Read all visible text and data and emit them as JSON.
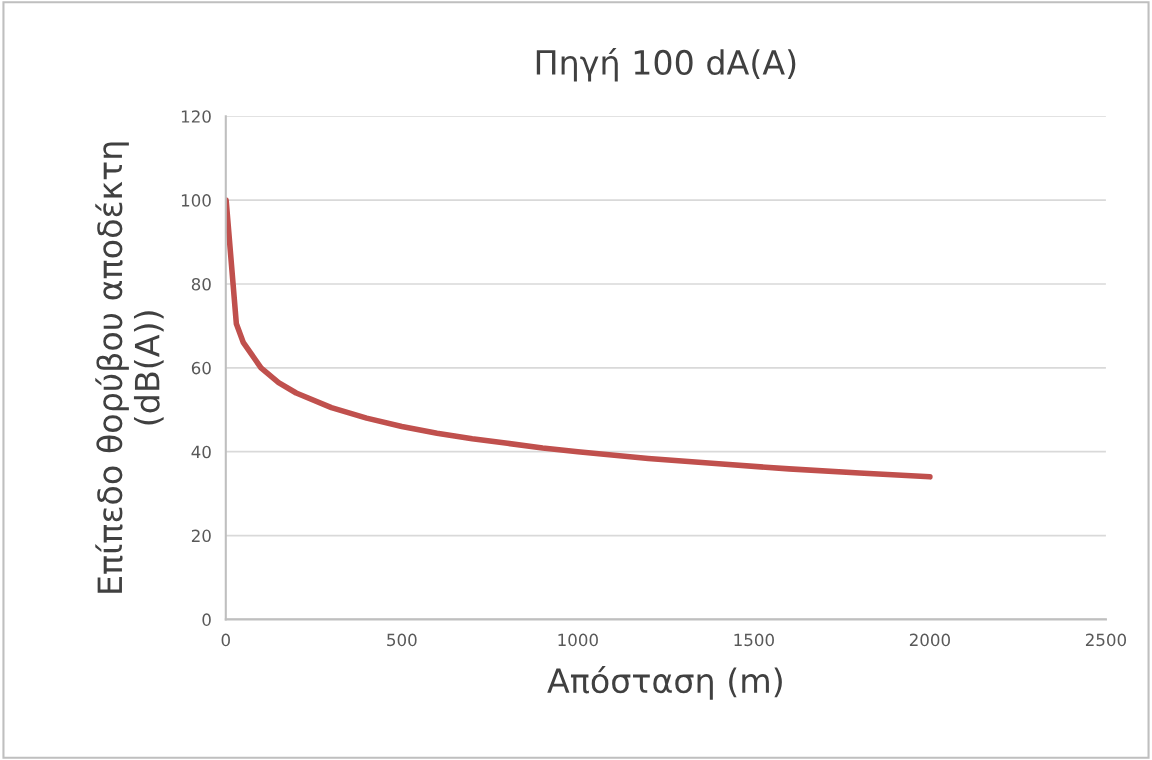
{
  "chart_data": {
    "type": "line",
    "title": "Πηγή 100 dA(A)",
    "xlabel": "Απόσταση (m)",
    "ylabel": "Επίπεδο θορύβου αποδέκτη\n(dB(A))",
    "series": [
      {
        "color": "#c0504d",
        "x": [
          1,
          30,
          50,
          100,
          150,
          200,
          300,
          400,
          500,
          600,
          700,
          800,
          900,
          1000,
          1200,
          1400,
          1600,
          1800,
          2000
        ],
        "values": [
          100,
          70.5,
          66,
          60,
          56.5,
          54,
          50.5,
          48,
          46,
          44.4,
          43.1,
          42,
          40.9,
          40,
          38.4,
          37.1,
          35.9,
          34.9,
          34
        ]
      }
    ],
    "xlim": [
      0,
      2500
    ],
    "xticks": [
      0,
      500,
      1000,
      1500,
      2000,
      2500
    ],
    "ylim": [
      0,
      120
    ],
    "yticks": [
      0,
      20,
      40,
      60,
      80,
      100,
      120
    ],
    "grid": "y",
    "marker": "none",
    "line_style": "solid"
  }
}
